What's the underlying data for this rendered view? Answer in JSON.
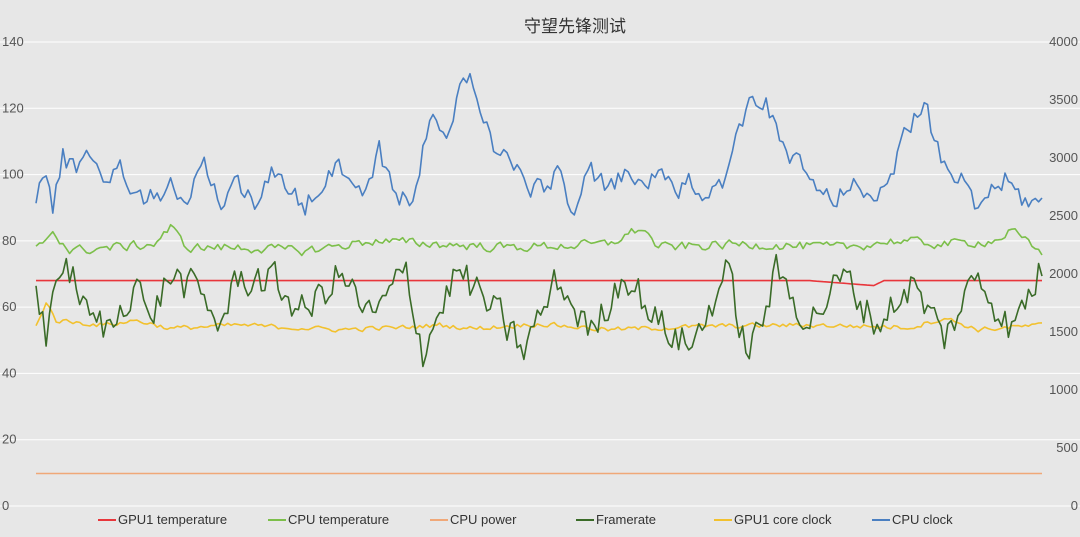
{
  "chart_data": {
    "type": "line",
    "title": "守望先锋测试",
    "xlabel": "",
    "ylabel": "",
    "y_left": {
      "ylim": [
        0,
        140
      ],
      "ticks": [
        0,
        20,
        40,
        60,
        80,
        100,
        120,
        140
      ]
    },
    "y_right": {
      "ylim": [
        0,
        4000
      ],
      "ticks": [
        0,
        500,
        1000,
        1500,
        2000,
        2500,
        3000,
        3500,
        4000
      ]
    },
    "grid": true,
    "legend_position": "bottom",
    "point_count": 300,
    "series": [
      {
        "name": "GPU1 temperature",
        "color": "#e8363b",
        "axis": "left",
        "keypoints": [
          [
            0,
            68
          ],
          [
            120,
            68
          ],
          [
            180,
            68
          ],
          [
            230,
            68
          ],
          [
            249,
            66.5
          ],
          [
            252,
            68
          ],
          [
            299,
            68
          ]
        ]
      },
      {
        "name": "CPU temperature",
        "color": "#7cbf4a",
        "axis": "left",
        "keypoints": [
          [
            0,
            77.5
          ],
          [
            5,
            83
          ],
          [
            10,
            77
          ],
          [
            35,
            79
          ],
          [
            40,
            84
          ],
          [
            45,
            78
          ],
          [
            60,
            78
          ],
          [
            80,
            77
          ],
          [
            100,
            80
          ],
          [
            140,
            78
          ],
          [
            170,
            79
          ],
          [
            180,
            84
          ],
          [
            185,
            78
          ],
          [
            210,
            79
          ],
          [
            240,
            78
          ],
          [
            255,
            80
          ],
          [
            270,
            79
          ],
          [
            285,
            80
          ],
          [
            290,
            83
          ],
          [
            299,
            76
          ]
        ],
        "base": 78,
        "noise_amplitude": 2
      },
      {
        "name": "CPU power",
        "color": "#f0a878",
        "axis": "left",
        "keypoints": [
          [
            0,
            9.8
          ],
          [
            299,
            9.8
          ]
        ]
      },
      {
        "name": "Framerate",
        "color": "#3a6b28",
        "axis": "left",
        "keypoints": [
          [
            0,
            70
          ],
          [
            3,
            49
          ],
          [
            6,
            72
          ],
          [
            12,
            68
          ],
          [
            15,
            57
          ],
          [
            22,
            53
          ],
          [
            30,
            70
          ],
          [
            33,
            55
          ],
          [
            40,
            70
          ],
          [
            48,
            64
          ],
          [
            55,
            55
          ],
          [
            60,
            69
          ],
          [
            70,
            68
          ],
          [
            80,
            58
          ],
          [
            90,
            70
          ],
          [
            100,
            56
          ],
          [
            110,
            71
          ],
          [
            115,
            47
          ],
          [
            125,
            71
          ],
          [
            135,
            60
          ],
          [
            145,
            47
          ],
          [
            155,
            68
          ],
          [
            165,
            52
          ],
          [
            175,
            71
          ],
          [
            185,
            55
          ],
          [
            195,
            48
          ],
          [
            205,
            71
          ],
          [
            212,
            45
          ],
          [
            220,
            70
          ],
          [
            230,
            56
          ],
          [
            240,
            69
          ],
          [
            250,
            55
          ],
          [
            260,
            67
          ],
          [
            270,
            51
          ],
          [
            280,
            70
          ],
          [
            290,
            53
          ],
          [
            299,
            72
          ]
        ],
        "base": 62,
        "noise_amplitude": 8
      },
      {
        "name": "GPU1 core clock",
        "color": "#f2c12e",
        "axis": "right",
        "keypoints": [
          [
            0,
            1550
          ],
          [
            3,
            1760
          ],
          [
            6,
            1600
          ],
          [
            20,
            1560
          ],
          [
            30,
            1600
          ],
          [
            40,
            1530
          ],
          [
            60,
            1560
          ],
          [
            90,
            1520
          ],
          [
            110,
            1540
          ],
          [
            120,
            1560
          ],
          [
            130,
            1530
          ],
          [
            150,
            1570
          ],
          [
            170,
            1520
          ],
          [
            200,
            1550
          ],
          [
            230,
            1560
          ],
          [
            260,
            1540
          ],
          [
            270,
            1620
          ],
          [
            280,
            1520
          ],
          [
            299,
            1560
          ]
        ],
        "base": 1550,
        "noise_amplitude": 30
      },
      {
        "name": "CPU clock",
        "color": "#4a7fc1",
        "axis": "right",
        "keypoints": [
          [
            0,
            2700
          ],
          [
            3,
            2900
          ],
          [
            5,
            2550
          ],
          [
            8,
            3000
          ],
          [
            12,
            2900
          ],
          [
            14,
            3100
          ],
          [
            20,
            2850
          ],
          [
            25,
            2900
          ],
          [
            30,
            2700
          ],
          [
            35,
            2650
          ],
          [
            40,
            2800
          ],
          [
            45,
            2550
          ],
          [
            50,
            3000
          ],
          [
            55,
            2600
          ],
          [
            60,
            2800
          ],
          [
            65,
            2650
          ],
          [
            70,
            2850
          ],
          [
            75,
            2700
          ],
          [
            80,
            2600
          ],
          [
            85,
            2800
          ],
          [
            90,
            3000
          ],
          [
            95,
            2700
          ],
          [
            100,
            2800
          ],
          [
            102,
            3100
          ],
          [
            105,
            2800
          ],
          [
            108,
            2600
          ],
          [
            112,
            2700
          ],
          [
            118,
            3400
          ],
          [
            122,
            3100
          ],
          [
            126,
            3650
          ],
          [
            130,
            3650
          ],
          [
            133,
            3400
          ],
          [
            136,
            3100
          ],
          [
            140,
            3000
          ],
          [
            145,
            2800
          ],
          [
            150,
            2700
          ],
          [
            155,
            2900
          ],
          [
            160,
            2550
          ],
          [
            165,
            2900
          ],
          [
            170,
            2700
          ],
          [
            175,
            2850
          ],
          [
            180,
            2750
          ],
          [
            185,
            2900
          ],
          [
            190,
            2650
          ],
          [
            195,
            2800
          ],
          [
            200,
            2700
          ],
          [
            205,
            2850
          ],
          [
            210,
            3300
          ],
          [
            213,
            3550
          ],
          [
            217,
            3500
          ],
          [
            220,
            3200
          ],
          [
            224,
            3000
          ],
          [
            228,
            2900
          ],
          [
            233,
            2700
          ],
          [
            238,
            2600
          ],
          [
            242,
            2800
          ],
          [
            246,
            2650
          ],
          [
            250,
            2750
          ],
          [
            255,
            2900
          ],
          [
            260,
            3300
          ],
          [
            264,
            3550
          ],
          [
            267,
            3100
          ],
          [
            270,
            2900
          ],
          [
            275,
            2800
          ],
          [
            279,
            2550
          ],
          [
            283,
            2700
          ],
          [
            288,
            2800
          ],
          [
            293,
            2650
          ],
          [
            299,
            2600
          ]
        ],
        "base": 2800,
        "noise_amplitude": 140
      }
    ]
  }
}
